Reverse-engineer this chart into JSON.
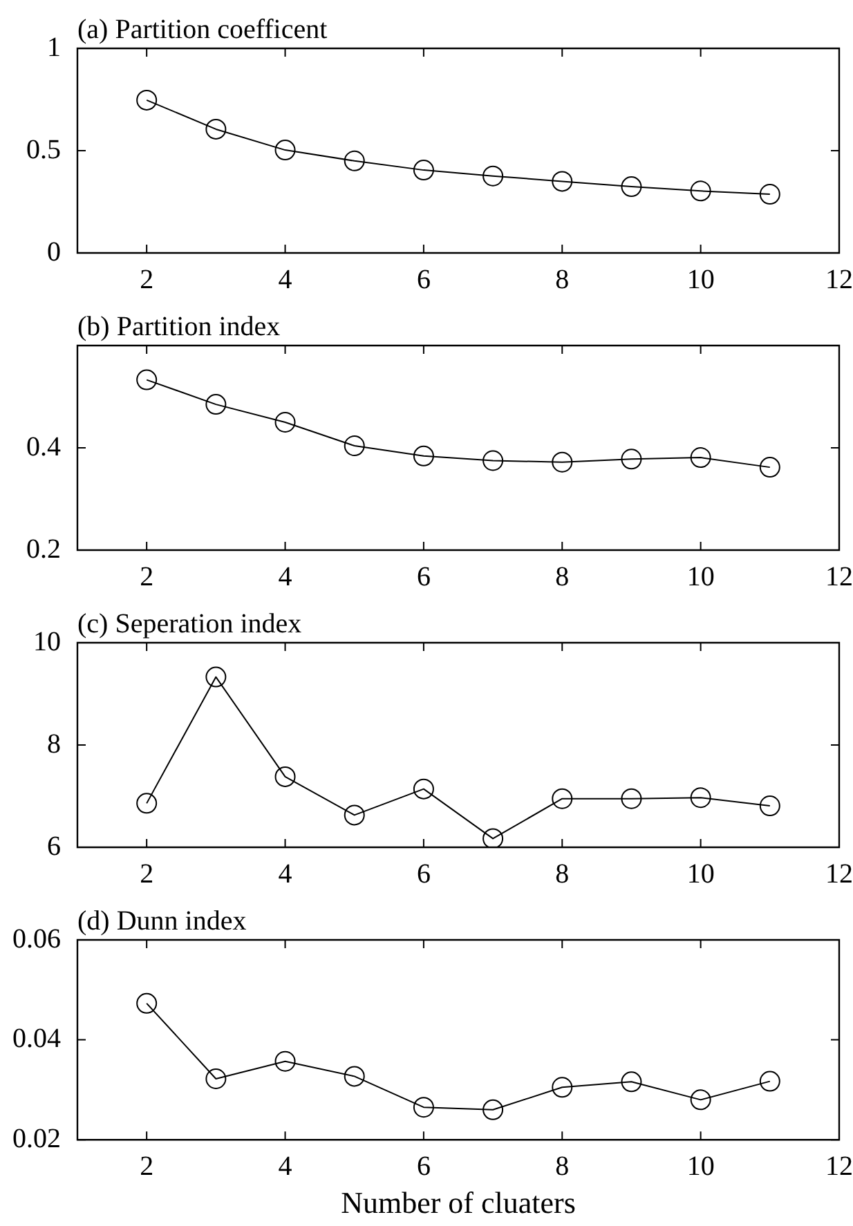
{
  "chart_data": [
    {
      "type": "line",
      "title": "(a) Partition coefficent",
      "x": [
        2,
        3,
        4,
        5,
        6,
        7,
        8,
        9,
        10,
        11
      ],
      "xlim": [
        1,
        12
      ],
      "xticks": [
        2,
        4,
        6,
        8,
        10,
        12
      ],
      "ylim": [
        0,
        1
      ],
      "yticks": [
        0,
        0.5,
        1
      ],
      "grid": false,
      "marker": "circle",
      "line_style": "solid",
      "series": [
        {
          "color": "#000000",
          "values": [
            0.747,
            0.605,
            0.503,
            0.45,
            0.405,
            0.376,
            0.35,
            0.324,
            0.303,
            0.287
          ]
        }
      ]
    },
    {
      "type": "line",
      "title": "(b) Partition index",
      "x": [
        2,
        3,
        4,
        5,
        6,
        7,
        8,
        9,
        10,
        11
      ],
      "xlim": [
        1,
        12
      ],
      "xticks": [
        2,
        4,
        6,
        8,
        10,
        12
      ],
      "ylim": [
        0.2,
        0.6
      ],
      "yticks": [
        0.2,
        0.4
      ],
      "grid": false,
      "marker": "circle",
      "line_style": "solid",
      "series": [
        {
          "color": "#000000",
          "values": [
            0.533,
            0.485,
            0.45,
            0.404,
            0.384,
            0.375,
            0.372,
            0.378,
            0.381,
            0.362
          ]
        }
      ]
    },
    {
      "type": "line",
      "title": "(c) Seperation index",
      "x": [
        2,
        3,
        4,
        5,
        6,
        7,
        8,
        9,
        10,
        11
      ],
      "xlim": [
        1,
        12
      ],
      "xticks": [
        2,
        4,
        6,
        8,
        10,
        12
      ],
      "ylim": [
        6,
        10
      ],
      "yticks": [
        6,
        8,
        10
      ],
      "grid": false,
      "marker": "circle",
      "line_style": "solid",
      "series": [
        {
          "color": "#000000",
          "values": [
            6.86,
            9.33,
            7.38,
            6.63,
            7.14,
            6.17,
            6.95,
            6.95,
            6.97,
            6.81
          ]
        }
      ]
    },
    {
      "type": "line",
      "title": "(d) Dunn index",
      "xlabel": "Number of cluaters",
      "x": [
        2,
        3,
        4,
        5,
        6,
        7,
        8,
        9,
        10,
        11
      ],
      "xlim": [
        1,
        12
      ],
      "xticks": [
        2,
        4,
        6,
        8,
        10,
        12
      ],
      "ylim": [
        0.02,
        0.06
      ],
      "yticks": [
        0.02,
        0.04,
        0.06
      ],
      "grid": false,
      "marker": "circle",
      "line_style": "solid",
      "series": [
        {
          "color": "#000000",
          "values": [
            0.0473,
            0.0322,
            0.0357,
            0.0327,
            0.0265,
            0.026,
            0.0305,
            0.0316,
            0.028,
            0.0317
          ]
        }
      ]
    }
  ]
}
